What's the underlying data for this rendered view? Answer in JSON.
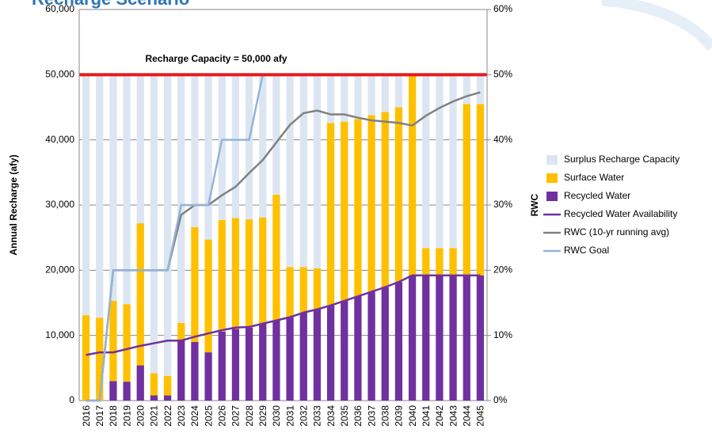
{
  "chart_data": {
    "type": "bar",
    "stacked": true,
    "title": "Recharge Scenario",
    "y_label": "Annual Recharge (afy)",
    "y2_label": "RWC",
    "annotation": "Recharge Capacity = 50,000 afy",
    "capacity": 50000,
    "capacity_color": "#e41a1c",
    "categories": [
      "2016",
      "2017",
      "2018",
      "2019",
      "2020",
      "2021",
      "2022",
      "2023",
      "2024",
      "2025",
      "2026",
      "2027",
      "2028",
      "2029",
      "2030",
      "2031",
      "2032",
      "2033",
      "2034",
      "2035",
      "2036",
      "2037",
      "2038",
      "2039",
      "2040",
      "2041",
      "2042",
      "2043",
      "2044",
      "2045"
    ],
    "ylim": [
      0,
      60000
    ],
    "yticks": [
      {
        "value": 0,
        "label": "0"
      },
      {
        "value": 10000,
        "label": "10,000"
      },
      {
        "value": 20000,
        "label": "20,000"
      },
      {
        "value": 30000,
        "label": "30,000"
      },
      {
        "value": 40000,
        "label": "40,000"
      },
      {
        "value": 50000,
        "label": "50,000"
      },
      {
        "value": 60000,
        "label": "60,000"
      }
    ],
    "y2lim": [
      0,
      60
    ],
    "y2ticks": [
      {
        "value": 0,
        "label": "0%"
      },
      {
        "value": 10,
        "label": "10%"
      },
      {
        "value": 20,
        "label": "20%"
      },
      {
        "value": 30,
        "label": "30%"
      },
      {
        "value": 40,
        "label": "40%"
      },
      {
        "value": 50,
        "label": "50%"
      },
      {
        "value": 60,
        "label": "60%"
      }
    ],
    "grid": true,
    "legend": "right",
    "series": [
      {
        "name": "Surplus Recharge Capacity",
        "type": "bar",
        "color": "#dce6f2",
        "values": [
          36900,
          37300,
          34700,
          35200,
          22800,
          45800,
          46200,
          38100,
          23400,
          25300,
          22300,
          22000,
          22200,
          21900,
          18400,
          29500,
          29500,
          29700,
          7400,
          7200,
          6800,
          6200,
          5700,
          5000,
          0,
          26600,
          26600,
          26600,
          4500,
          4500
        ]
      },
      {
        "name": "Surface Water",
        "type": "bar",
        "color": "#ffc000",
        "values": [
          13100,
          12700,
          12300,
          11900,
          21800,
          3400,
          3000,
          2700,
          17600,
          17300,
          17100,
          17000,
          16600,
          16300,
          19300,
          7700,
          7000,
          6300,
          28000,
          27500,
          27200,
          27100,
          26900,
          26800,
          30800,
          4200,
          4200,
          4200,
          26300,
          26300
        ]
      },
      {
        "name": "Recycled Water",
        "type": "bar",
        "color": "#7030a0",
        "values": [
          0,
          0,
          3000,
          2900,
          5400,
          800,
          800,
          9200,
          9000,
          7400,
          10600,
          11000,
          11200,
          11800,
          12300,
          12800,
          13500,
          14000,
          14600,
          15300,
          16000,
          16700,
          17400,
          18200,
          19200,
          19200,
          19200,
          19200,
          19200,
          19200
        ]
      },
      {
        "name": "Recycled Water Availability",
        "type": "line",
        "color": "#7030a0",
        "values": [
          7000,
          7400,
          7400,
          7900,
          8400,
          8800,
          9200,
          9200,
          9800,
          10300,
          10800,
          11200,
          11300,
          11800,
          12300,
          12800,
          13500,
          14000,
          14600,
          15300,
          16000,
          16700,
          17400,
          18200,
          19200,
          19200,
          19200,
          19200,
          19200,
          19200
        ]
      },
      {
        "name": "RWC (10-yr running avg)",
        "type": "line",
        "axis": "y2",
        "color": "#808080",
        "values": [
          0,
          0,
          20,
          20,
          20,
          20,
          20,
          28.5,
          30,
          30,
          31.5,
          32.8,
          34.9,
          36.9,
          39.6,
          42.3,
          44.1,
          44.5,
          43.9,
          43.9,
          43.4,
          43.0,
          42.8,
          42.6,
          42.2,
          43.7,
          44.9,
          45.9,
          46.7,
          47.3
        ]
      },
      {
        "name": "RWC Goal",
        "type": "line",
        "axis": "y2",
        "color": "#95b3d7",
        "values": [
          0,
          0,
          20,
          20,
          20,
          20,
          20,
          30,
          30,
          30,
          40,
          40,
          40,
          50,
          50,
          50,
          50,
          50,
          50,
          50,
          50,
          50,
          50,
          50,
          50,
          50,
          50,
          50,
          50,
          50
        ]
      }
    ]
  }
}
